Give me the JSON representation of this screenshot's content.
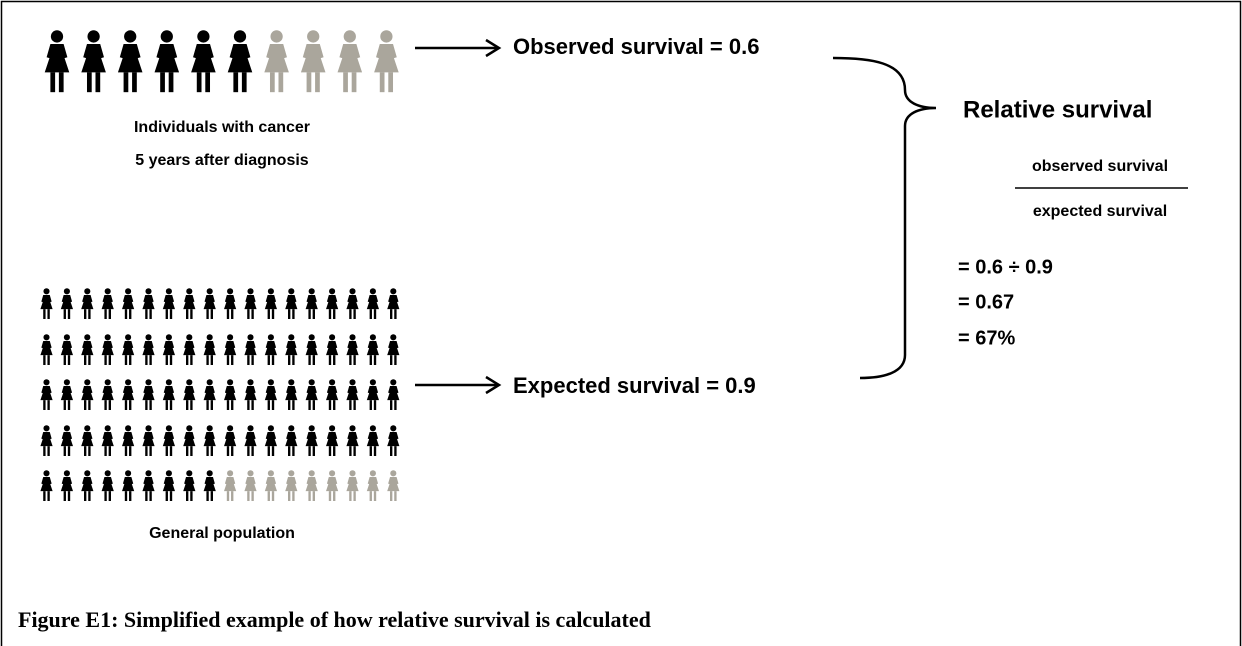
{
  "cancer_group": {
    "label_lines": [
      "Individuals with cancer",
      "5 years after diagnosis"
    ],
    "result": "Observed survival = 0.6"
  },
  "general_population": {
    "label": "General population",
    "result": "Expected survival = 0.9"
  },
  "relative_survival": {
    "title": "Relative survival",
    "numerator": "observed survival",
    "denominator": "expected survival",
    "steps": [
      "= 0.6 ÷ 0.9",
      "= 0.67",
      "= 67%"
    ]
  },
  "caption": "Figure E1: Simplified example of how relative survival is calculated"
}
